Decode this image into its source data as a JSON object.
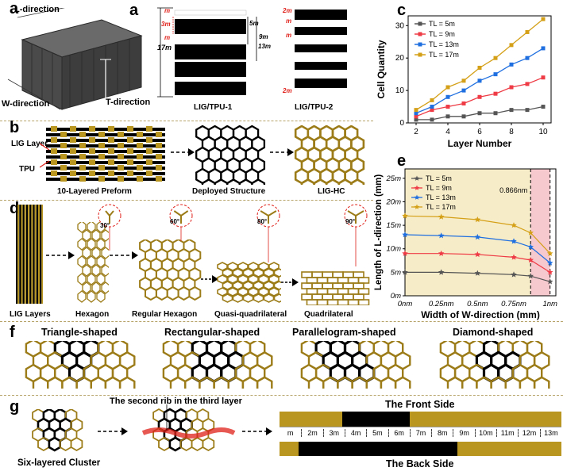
{
  "panel_labels": {
    "a": "a",
    "b": "b",
    "c": "c",
    "d": "d",
    "e": "e",
    "f": "f",
    "g": "g"
  },
  "panel_a": {
    "l_direction": "L-direction",
    "w_direction": "W-direction",
    "t_direction": "T-direction",
    "tpu1_caption": "LIG/TPU-1",
    "tpu2_caption": "LIG/TPU-2",
    "dims": {
      "m": "m",
      "three_m": "3m",
      "five_m": "5m",
      "nine_m": "9m",
      "thirteen_m": "13m",
      "seventeen_m": "17m",
      "two_m": "2m"
    }
  },
  "panel_b": {
    "lig_layer": "LIG Layer",
    "tpu": "TPU",
    "preform": "10-Layered Preform",
    "deployed": "Deployed Structure",
    "lighc": "LIG-HC"
  },
  "panel_d": {
    "lig_layers": "LIG Layers",
    "hexagon": "Hexagon",
    "regular_hexagon": "Regular Hexagon",
    "quasi": "Quasi-quadrilateral",
    "quadrilateral": "Quadrilateral",
    "angles": [
      "30°",
      "60°",
      "80°",
      "90°"
    ]
  },
  "panel_f": {
    "triangle": "Triangle-shaped",
    "rectangular": "Rectangular-shaped",
    "parallelogram": "Parallelogram-shaped",
    "diamond": "Diamond-shaped"
  },
  "panel_g": {
    "six_layered": "Six-layered Cluster",
    "second_rib": "The second rib in the third layer",
    "front": "The Front Side",
    "back": "The Back Side",
    "strip_labels": [
      "m",
      "2m",
      "3m",
      "4m",
      "5m",
      "6m",
      "7m",
      "8m",
      "9m",
      "10m",
      "11m",
      "12m",
      "13m"
    ]
  },
  "colors": {
    "gold": "#9c7c18",
    "gold_light": "#b8961f",
    "red": "#e0201a",
    "chart_gold": "#d4a017",
    "chart_red": "#ee3b45",
    "chart_blue": "#1f6fe0",
    "chart_gray": "#555555"
  },
  "chart_data": [
    {
      "type": "line",
      "panel": "c",
      "xlabel": "Layer Number",
      "ylabel": "Cell Quantity",
      "x": [
        2,
        3,
        4,
        5,
        6,
        7,
        8,
        9,
        10
      ],
      "xticks": [
        2,
        4,
        6,
        8,
        10
      ],
      "yticks": [
        0,
        10,
        20,
        30
      ],
      "xlim": [
        1.5,
        10.5
      ],
      "ylim": [
        0,
        33
      ],
      "legend_position": "top-left",
      "series": [
        {
          "name": "TL = 5m",
          "color": "#555555",
          "marker": "square",
          "values": [
            1,
            1,
            2,
            2,
            3,
            3,
            4,
            4,
            5
          ]
        },
        {
          "name": "TL = 9m",
          "color": "#ee3b45",
          "marker": "square",
          "values": [
            2,
            4,
            5,
            6,
            8,
            9,
            11,
            12,
            14
          ]
        },
        {
          "name": "TL = 13m",
          "color": "#1f6fe0",
          "marker": "square",
          "values": [
            3,
            5,
            8,
            10,
            13,
            15,
            18,
            20,
            23
          ]
        },
        {
          "name": "TL = 17m",
          "color": "#d4a017",
          "marker": "square",
          "values": [
            4,
            7,
            11,
            13,
            17,
            20,
            24,
            28,
            32
          ]
        }
      ]
    },
    {
      "type": "line",
      "panel": "e",
      "xlabel": "Width of W-direction (mm)",
      "ylabel": "Length of L-direction (mm)",
      "xtick_labels": [
        "0nm",
        "0.25nm",
        "0.5nm",
        "0.75nm",
        "1nm"
      ],
      "ytick_labels": [
        "0m",
        "5m",
        "10m",
        "15m",
        "20m",
        "25m"
      ],
      "xlim": [
        0,
        1.04
      ],
      "ylim": [
        0,
        27
      ],
      "annotation": "0.866nm",
      "annotation_x": 0.866,
      "legend_position": "top-left",
      "series": [
        {
          "name": "TL = 5m",
          "color": "#555555",
          "marker": "star",
          "x": [
            0,
            0.25,
            0.5,
            0.75,
            0.866,
            1.0
          ],
          "values": [
            5,
            5,
            4.8,
            4.5,
            4.2,
            3
          ]
        },
        {
          "name": "TL = 9m",
          "color": "#ee3b45",
          "marker": "star",
          "x": [
            0,
            0.25,
            0.5,
            0.75,
            0.866,
            1.0
          ],
          "values": [
            9,
            9,
            8.8,
            8.2,
            7.6,
            5
          ]
        },
        {
          "name": "TL = 13m",
          "color": "#1f6fe0",
          "marker": "star",
          "x": [
            0,
            0.25,
            0.5,
            0.75,
            0.866,
            1.0
          ],
          "values": [
            13,
            12.8,
            12.5,
            11.6,
            10.4,
            7
          ]
        },
        {
          "name": "TL = 17m",
          "color": "#d4a017",
          "marker": "star",
          "x": [
            0,
            0.25,
            0.5,
            0.75,
            0.866,
            1.0
          ],
          "values": [
            17,
            16.8,
            16.2,
            15,
            13.4,
            9
          ]
        }
      ]
    }
  ]
}
